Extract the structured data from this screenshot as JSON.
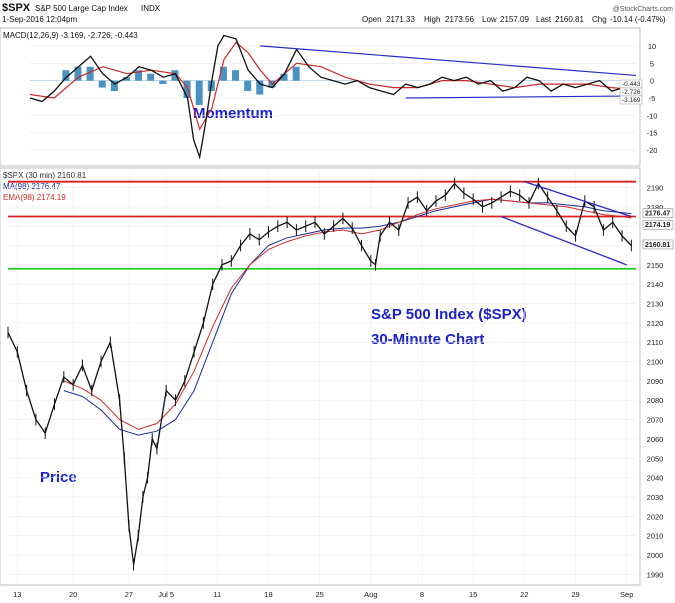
{
  "header": {
    "symbol": "$SPX",
    "name": "S&P 500 Large Cap Index",
    "exchange": "INDX",
    "date": "1-Sep-2016 12:04pm",
    "open_label": "Open",
    "open": "2171.33",
    "high_label": "High",
    "high": "2173.56",
    "low_label": "Low",
    "low": "2157.09",
    "last_label": "Last",
    "last": "2160.81",
    "chg_label": "Chg",
    "chg": "-10.14 (-0.47%)",
    "watermark": "@StockCharts.com"
  },
  "colors": {
    "price": "#111111",
    "ma": "#1a2a9a",
    "ema": "#cc2a2a",
    "resistance": "#e01e1e",
    "support": "#22cc22",
    "trend": "#2a2ac8",
    "macd_hist": "#2a7fb5",
    "annotation": "#1a1fc9"
  },
  "chart_data": [
    {
      "type": "line",
      "panel": "momentum",
      "legend": [
        "MACD(12,26,9) -3.169, -2.726, -0.443"
      ],
      "annotation": "Momentum",
      "y_ticks": [
        10,
        5,
        0,
        -5,
        -10,
        -15,
        -20
      ],
      "ylim": [
        -24,
        14
      ],
      "right_labels": [
        "-0.443",
        "-2.726",
        "-3.169"
      ],
      "x_index_range": [
        0,
        100
      ],
      "series": [
        {
          "role": "macd",
          "x": [
            0,
            2,
            4,
            6,
            8,
            10,
            12,
            14,
            16,
            18,
            20,
            22,
            24,
            26,
            27,
            28,
            29,
            30,
            31,
            32,
            34,
            36,
            38,
            40,
            42,
            44,
            46,
            48,
            50,
            52,
            54,
            56,
            58,
            60,
            62,
            64,
            66,
            68,
            70,
            72,
            74,
            76,
            78,
            80,
            82,
            84,
            86,
            88,
            90,
            92,
            94,
            96,
            98,
            100
          ],
          "y": [
            -5,
            -6,
            -3,
            1,
            4,
            7,
            2,
            -1,
            1,
            4,
            3,
            1,
            2,
            -5,
            -17,
            -22,
            -12,
            0,
            10,
            13,
            12,
            3,
            -1,
            -2,
            2,
            9,
            4,
            1,
            0,
            -1,
            0,
            -2,
            -3,
            -4,
            -1,
            -2,
            -1,
            1,
            0,
            1,
            -1,
            0,
            -3,
            -2,
            1,
            0,
            -3,
            -1,
            -2,
            -1,
            0,
            -3,
            -2,
            -3
          ]
        },
        {
          "role": "signal",
          "x": [
            0,
            4,
            8,
            12,
            16,
            20,
            24,
            26,
            28,
            30,
            32,
            34,
            36,
            38,
            40,
            44,
            48,
            52,
            56,
            60,
            64,
            68,
            72,
            76,
            80,
            84,
            88,
            92,
            96,
            100
          ],
          "y": [
            -4,
            -5,
            1,
            4,
            2,
            3,
            2,
            -2,
            -14,
            -8,
            6,
            11,
            8,
            3,
            -1,
            5,
            4,
            1,
            -1,
            -2,
            -2,
            0,
            0,
            -1,
            -2,
            -1,
            -1,
            -1,
            -2,
            -2.7
          ]
        }
      ],
      "histogram": {
        "x": [
          6,
          8,
          10,
          12,
          14,
          16,
          18,
          20,
          22,
          24,
          26,
          28,
          30,
          32,
          34,
          36,
          38,
          40,
          42,
          44
        ],
        "y": [
          3,
          4,
          4,
          -2,
          -3,
          1,
          3,
          2,
          -1,
          3,
          -5,
          -7,
          -3,
          4,
          3,
          -3,
          -4,
          -2,
          2,
          4
        ]
      },
      "trendlines": [
        {
          "label": "upper",
          "x": [
            38,
            100
          ],
          "y": [
            10,
            1.5
          ]
        },
        {
          "label": "lower",
          "x": [
            62,
            100
          ],
          "y": [
            -5,
            -4.4
          ]
        }
      ]
    },
    {
      "type": "line",
      "panel": "price",
      "legend": [
        "$SPX (30 min) 2160.81",
        "MA(98) 2176.47",
        "EMA(98) 2174.19"
      ],
      "annotation_title": "S&P 500 Index ($SPX)",
      "annotation_subtitle": "30-Minute Chart",
      "annotation_price": "Price",
      "y_ticks": [
        2190,
        2180,
        2170,
        2160,
        2150,
        2140,
        2130,
        2120,
        2110,
        2100,
        2090,
        2080,
        2070,
        2060,
        2050,
        2040,
        2030,
        2020,
        2010,
        2000,
        1990
      ],
      "ylim": [
        1985,
        2198
      ],
      "x_tick_labels": [
        "13",
        "20",
        "27",
        "Jul 5",
        "11",
        "18",
        "25",
        "Aug",
        "8",
        "15",
        "22",
        "29",
        "Sep"
      ],
      "x_tick_index": [
        2,
        14,
        26,
        34,
        45,
        56,
        67,
        78,
        89,
        100,
        111,
        122,
        133
      ],
      "x_index_range": [
        0,
        135
      ],
      "right_labels": [
        "2176.47",
        "2174.19",
        "2160.81"
      ],
      "series": [
        {
          "name": "$SPX (30 min)",
          "role": "price",
          "x": [
            0,
            2,
            4,
            6,
            8,
            10,
            12,
            14,
            16,
            18,
            20,
            22,
            24,
            25,
            26,
            27,
            28,
            29,
            30,
            31,
            32,
            34,
            36,
            38,
            40,
            42,
            44,
            46,
            48,
            50,
            52,
            54,
            56,
            58,
            60,
            62,
            64,
            66,
            68,
            70,
            72,
            74,
            76,
            78,
            79,
            80,
            82,
            84,
            86,
            88,
            90,
            92,
            94,
            96,
            98,
            100,
            102,
            104,
            106,
            108,
            110,
            112,
            114,
            116,
            118,
            120,
            122,
            124,
            126,
            128,
            130,
            132,
            134
          ],
          "y": [
            2115,
            2105,
            2085,
            2070,
            2063,
            2078,
            2092,
            2088,
            2098,
            2085,
            2100,
            2110,
            2080,
            2050,
            2015,
            1995,
            2010,
            2030,
            2040,
            2060,
            2055,
            2085,
            2080,
            2090,
            2105,
            2120,
            2140,
            2150,
            2152,
            2160,
            2166,
            2163,
            2167,
            2170,
            2172,
            2168,
            2170,
            2172,
            2166,
            2170,
            2174,
            2169,
            2160,
            2152,
            2150,
            2165,
            2172,
            2168,
            2182,
            2185,
            2178,
            2183,
            2186,
            2192,
            2187,
            2184,
            2180,
            2182,
            2185,
            2188,
            2186,
            2182,
            2192,
            2185,
            2178,
            2170,
            2165,
            2183,
            2180,
            2168,
            2172,
            2165,
            2160
          ]
        },
        {
          "name": "MA(98)",
          "role": "ma",
          "x": [
            12,
            16,
            20,
            24,
            28,
            32,
            36,
            40,
            44,
            48,
            52,
            56,
            60,
            64,
            68,
            72,
            76,
            80,
            84,
            88,
            92,
            96,
            100,
            104,
            108,
            112,
            116,
            120,
            124,
            128,
            132,
            134
          ],
          "y": [
            2085,
            2082,
            2075,
            2065,
            2062,
            2064,
            2070,
            2085,
            2110,
            2135,
            2150,
            2160,
            2164,
            2166,
            2168,
            2169,
            2169,
            2170,
            2172,
            2175,
            2178,
            2180,
            2182,
            2184,
            2183,
            2182,
            2182,
            2181,
            2180,
            2178,
            2177,
            2176.5
          ]
        },
        {
          "name": "EMA(98)",
          "role": "ema",
          "x": [
            12,
            16,
            20,
            24,
            28,
            32,
            36,
            40,
            44,
            48,
            52,
            56,
            60,
            64,
            68,
            72,
            76,
            80,
            84,
            88,
            92,
            96,
            100,
            104,
            108,
            112,
            116,
            120,
            124,
            128,
            132,
            134
          ],
          "y": [
            2090,
            2086,
            2080,
            2070,
            2065,
            2068,
            2078,
            2095,
            2118,
            2138,
            2150,
            2158,
            2162,
            2165,
            2167,
            2168,
            2166,
            2168,
            2172,
            2176,
            2179,
            2181,
            2183,
            2184,
            2183,
            2182,
            2181,
            2180,
            2178,
            2176,
            2175,
            2174.2
          ]
        }
      ],
      "hlines": [
        {
          "role": "resistance",
          "y": 2193
        },
        {
          "role": "resistance",
          "y": 2175
        },
        {
          "role": "support",
          "y": 2148
        }
      ],
      "trendlines": [
        {
          "label": "channel-upper",
          "x": [
            111,
            134
          ],
          "y": [
            2193,
            2175
          ]
        },
        {
          "label": "channel-lower",
          "x": [
            106,
            133
          ],
          "y": [
            2175,
            2150
          ]
        }
      ]
    }
  ]
}
